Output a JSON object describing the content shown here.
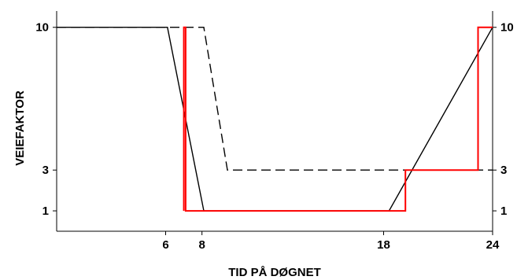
{
  "chart_data": {
    "type": "line",
    "title": "",
    "xlabel": "TID PÅ DØGNET",
    "ylabel": "VEIEFAKTOR",
    "xlim": [
      0,
      24
    ],
    "ylim": [
      0,
      10.8
    ],
    "x_ticks": [
      {
        "value": 6,
        "label": "6"
      },
      {
        "value": 8,
        "label": "8"
      },
      {
        "value": 18,
        "label": "18"
      },
      {
        "value": 24,
        "label": "24"
      }
    ],
    "y_ticks": [
      {
        "value": 1,
        "label": "1"
      },
      {
        "value": 3,
        "label": "3"
      },
      {
        "value": 10,
        "label": "10"
      }
    ],
    "right_axis": true,
    "grid": false,
    "legend": "none",
    "series": [
      {
        "style": "solid",
        "color": "#000000",
        "points": [
          [
            0,
            10
          ],
          [
            6.1,
            10
          ],
          [
            8.1,
            1
          ],
          [
            18.3,
            1
          ],
          [
            24,
            10
          ]
        ]
      },
      {
        "style": "dashed",
        "color": "#000000",
        "points": [
          [
            0,
            10
          ],
          [
            8.1,
            10
          ],
          [
            9.4,
            3
          ],
          [
            24,
            3
          ]
        ]
      },
      {
        "style": "step",
        "color": "#ff0000",
        "points": [
          [
            7.0,
            1
          ],
          [
            7.0,
            10
          ],
          [
            7.1,
            10
          ],
          [
            7.1,
            1
          ],
          [
            19.2,
            1
          ],
          [
            19.2,
            3
          ],
          [
            23.2,
            3
          ],
          [
            23.2,
            10
          ],
          [
            24,
            10
          ]
        ]
      }
    ]
  }
}
